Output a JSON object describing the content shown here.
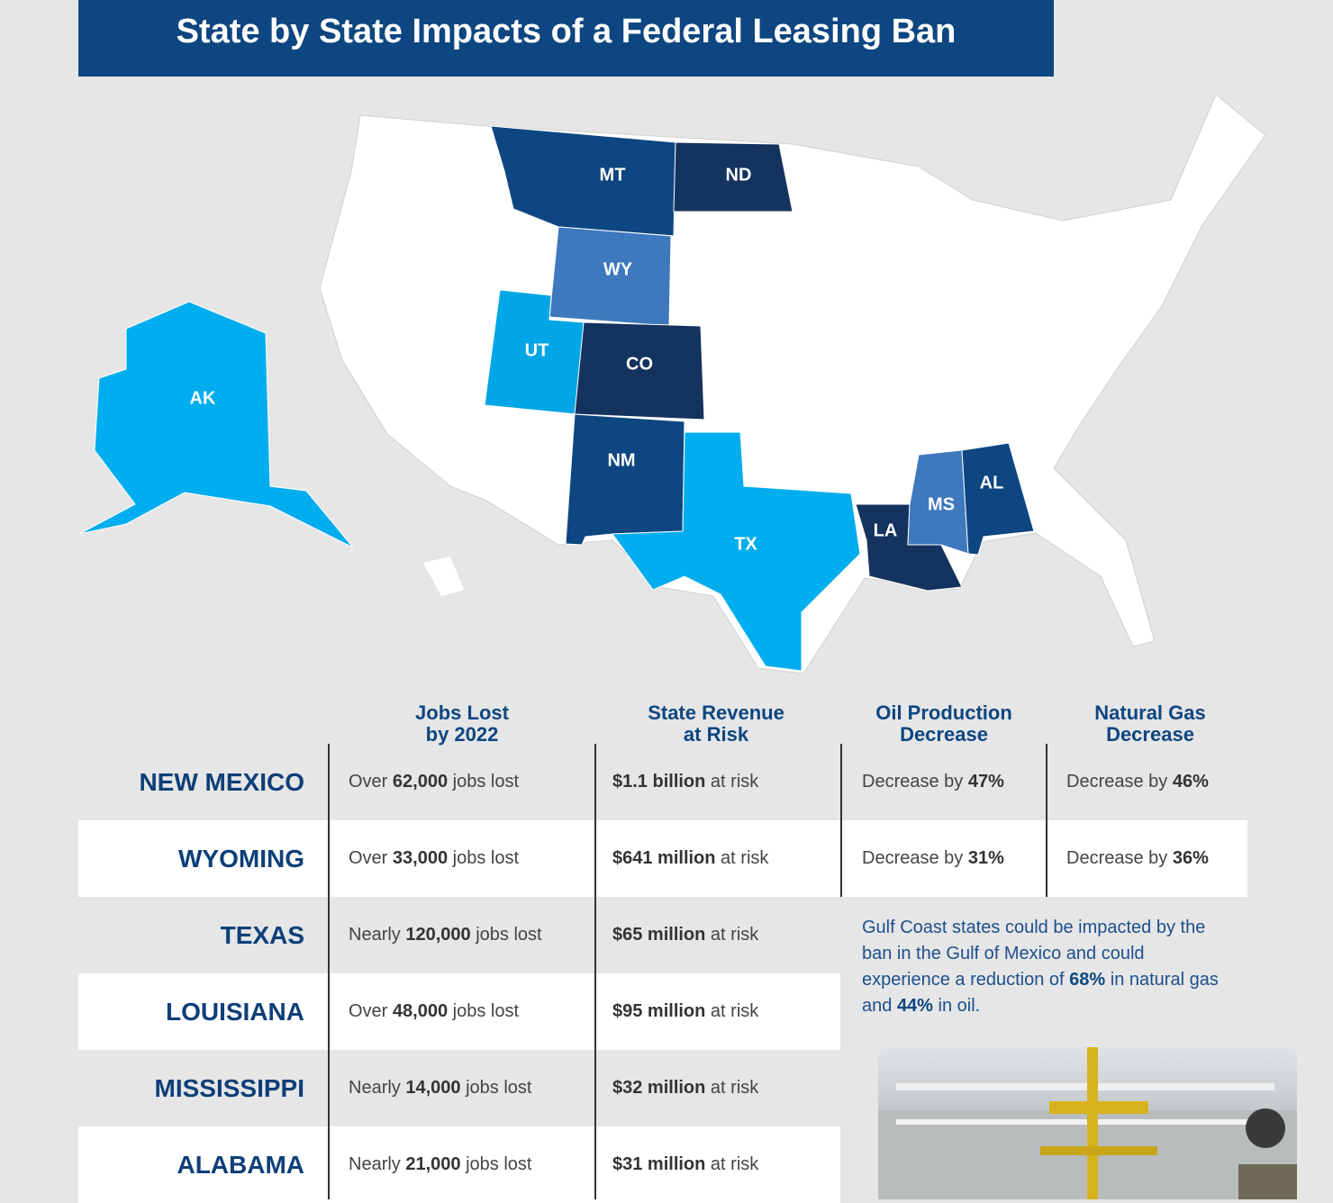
{
  "title": "State by State Impacts of a Federal Leasing Ban",
  "map": {
    "background": "#e6e6e7",
    "land_color": "#ffffff",
    "states": [
      {
        "label": "MT",
        "color": "#0d4680"
      },
      {
        "label": "ND",
        "color": "#15335f"
      },
      {
        "label": "WY",
        "color": "#3e78bd"
      },
      {
        "label": "UT",
        "color": "#00a6e6"
      },
      {
        "label": "CO",
        "color": "#15335f"
      },
      {
        "label": "NM",
        "color": "#0d4680"
      },
      {
        "label": "TX",
        "color": "#00adee"
      },
      {
        "label": "LA",
        "color": "#15335f"
      },
      {
        "label": "MS",
        "color": "#3e78bd"
      },
      {
        "label": "AL",
        "color": "#0d4680"
      },
      {
        "label": "AK",
        "color": "#00adee"
      }
    ]
  },
  "table": {
    "headers": [
      [
        "Jobs Lost",
        "by 2022"
      ],
      [
        "State Revenue",
        "at Risk"
      ],
      [
        "Oil Production",
        "Decrease"
      ],
      [
        "Natural Gas",
        "Decrease"
      ]
    ],
    "rows": [
      {
        "state": "NEW MEXICO",
        "cells": [
          [
            {
              "text": "Over "
            },
            {
              "text": "62,000",
              "bold": true
            },
            {
              "text": " jobs lost"
            }
          ],
          [
            {
              "text": "$1.1 billion",
              "bold": true
            },
            {
              "text": " at risk"
            }
          ],
          [
            {
              "text": "Decrease by "
            },
            {
              "text": "47%",
              "bold": true
            }
          ],
          [
            {
              "text": "Decrease by "
            },
            {
              "text": "46%",
              "bold": true
            }
          ]
        ]
      },
      {
        "state": "WYOMING",
        "cells": [
          [
            {
              "text": "Over "
            },
            {
              "text": "33,000",
              "bold": true
            },
            {
              "text": " jobs lost"
            }
          ],
          [
            {
              "text": "$641 million",
              "bold": true
            },
            {
              "text": " at risk"
            }
          ],
          [
            {
              "text": "Decrease by "
            },
            {
              "text": "31%",
              "bold": true
            }
          ],
          [
            {
              "text": "Decrease by "
            },
            {
              "text": "36%",
              "bold": true
            }
          ]
        ]
      },
      {
        "state": "TEXAS",
        "cells": [
          [
            {
              "text": "Nearly "
            },
            {
              "text": "120,000",
              "bold": true
            },
            {
              "text": " jobs lost"
            }
          ],
          [
            {
              "text": "$65 million",
              "bold": true
            },
            {
              "text": " at risk"
            }
          ]
        ]
      },
      {
        "state": "LOUISIANA",
        "cells": [
          [
            {
              "text": "Over "
            },
            {
              "text": "48,000",
              "bold": true
            },
            {
              "text": " jobs lost"
            }
          ],
          [
            {
              "text": "$95 million",
              "bold": true
            },
            {
              "text": " at risk"
            }
          ]
        ]
      },
      {
        "state": "MISSISSIPPI",
        "cells": [
          [
            {
              "text": "Nearly "
            },
            {
              "text": "14,000",
              "bold": true
            },
            {
              "text": " jobs lost"
            }
          ],
          [
            {
              "text": "$32 million",
              "bold": true
            },
            {
              "text": " at risk"
            }
          ]
        ]
      },
      {
        "state": "ALABAMA",
        "cells": [
          [
            {
              "text": "Nearly "
            },
            {
              "text": "21,000",
              "bold": true
            },
            {
              "text": " jobs lost"
            }
          ],
          [
            {
              "text": "$31 million",
              "bold": true
            },
            {
              "text": " at risk"
            }
          ]
        ]
      }
    ]
  },
  "note": [
    {
      "text": "Gulf Coast states could be impacted by the ban in the Gulf of Mexico and could experience a reduction of "
    },
    {
      "text": "68%",
      "bold": true
    },
    {
      "text": " in natural gas and "
    },
    {
      "text": "44%",
      "bold": true
    },
    {
      "text": " in oil."
    }
  ]
}
